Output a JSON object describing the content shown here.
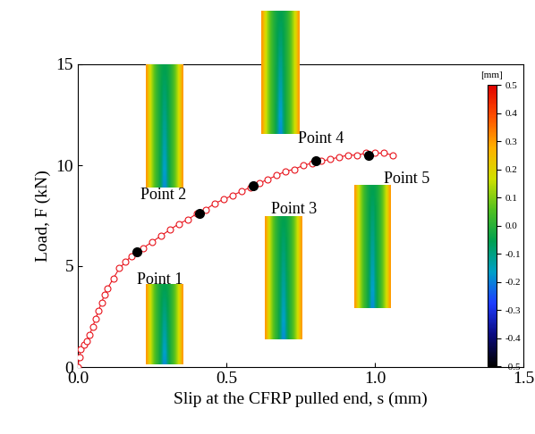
{
  "chart_data": {
    "type": "line",
    "x_label": "Slip at the CFRP pulled end, s (mm)",
    "y_label": "Load, F (kN)",
    "xlim": [
      0.0,
      1.5
    ],
    "xticks": [
      0.0,
      0.5,
      1.0,
      1.5
    ],
    "ylim": [
      0,
      15
    ],
    "yticks": [
      0,
      5,
      10,
      15
    ],
    "series": [
      {
        "color": "#e8141c",
        "marker": "circle_open",
        "line_style": "solid",
        "x": [
          0.0,
          0.005,
          0.01,
          0.02,
          0.03,
          0.04,
          0.05,
          0.06,
          0.07,
          0.08,
          0.09,
          0.1,
          0.12,
          0.14,
          0.16,
          0.18,
          0.2,
          0.22,
          0.25,
          0.28,
          0.31,
          0.34,
          0.37,
          0.4,
          0.43,
          0.46,
          0.49,
          0.52,
          0.55,
          0.58,
          0.61,
          0.64,
          0.67,
          0.7,
          0.73,
          0.76,
          0.79,
          0.82,
          0.85,
          0.88,
          0.91,
          0.94,
          0.97,
          1.0,
          1.03,
          1.06
        ],
        "values": [
          0.0,
          0.5,
          0.9,
          1.1,
          1.3,
          1.6,
          2.0,
          2.4,
          2.8,
          3.2,
          3.6,
          3.9,
          4.4,
          4.9,
          5.2,
          5.5,
          5.7,
          5.9,
          6.2,
          6.5,
          6.8,
          7.1,
          7.3,
          7.6,
          7.8,
          8.1,
          8.3,
          8.5,
          8.7,
          8.9,
          9.1,
          9.3,
          9.5,
          9.7,
          9.8,
          10.0,
          10.1,
          10.2,
          10.3,
          10.4,
          10.5,
          10.5,
          10.6,
          10.6,
          10.6,
          10.5
        ]
      }
    ],
    "points": [
      {
        "label": "Point 1",
        "x": 0.2,
        "y": 5.7,
        "color": "#000000"
      },
      {
        "label": "Point 2",
        "x": 0.41,
        "y": 7.6,
        "color": "#000000"
      },
      {
        "label": "Point 3",
        "x": 0.59,
        "y": 9.0,
        "color": "#000000"
      },
      {
        "label": "Point 4",
        "x": 0.8,
        "y": 10.2,
        "color": "#000000"
      },
      {
        "label": "Point 5",
        "x": 0.98,
        "y": 10.5,
        "color": "#000000"
      }
    ],
    "colorbar": {
      "label": "[mm]",
      "range": [
        -0.5,
        0.5
      ],
      "ticks": [
        -0.5,
        -0.4,
        -0.3,
        -0.2,
        -0.1,
        0.0,
        0.1,
        0.2,
        0.3,
        0.4,
        0.5
      ]
    }
  }
}
